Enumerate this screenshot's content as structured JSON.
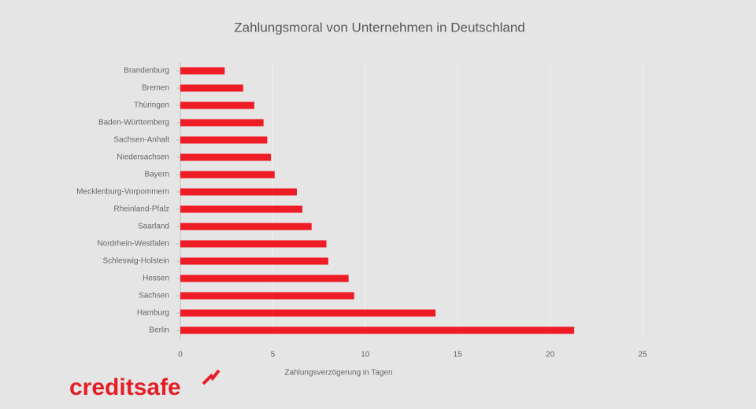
{
  "chart_data": {
    "type": "bar",
    "orientation": "horizontal",
    "title": "Zahlungsmoral von Unternehmen in Deutschland",
    "x_label": "Zahlungsverzögerung in Tagen",
    "categories": [
      "Brandenburg",
      "Bremen",
      "Thüringen",
      "Baden-Württemberg",
      "Sachsen-Anhalt",
      "Niedersachsen",
      "Bayern",
      "Mecklenburg-Vorpommern",
      "Rheinland-Pfalz",
      "Saarland",
      "Nordrhein-Westfalen",
      "Schleswig-Holstein",
      "Hessen",
      "Sachsen",
      "Hamburg",
      "Berlin"
    ],
    "values": [
      2.4,
      3.4,
      4.0,
      4.5,
      4.7,
      4.9,
      5.1,
      6.3,
      6.6,
      7.1,
      7.9,
      8.0,
      9.1,
      9.4,
      13.8,
      21.3
    ],
    "color": "#ee1c25",
    "xlim": [
      0,
      25
    ],
    "xticks": [
      0,
      5,
      10,
      15,
      20,
      25
    ],
    "grid": true
  },
  "logo": "creditsafe"
}
